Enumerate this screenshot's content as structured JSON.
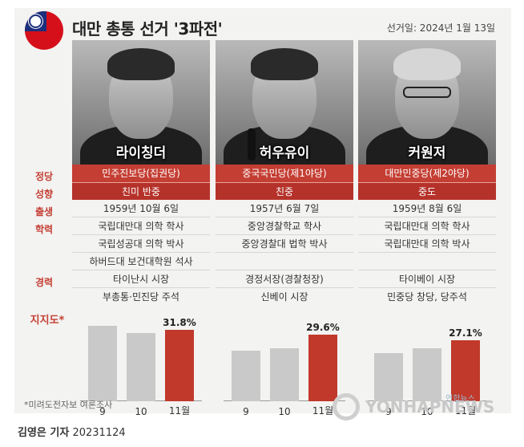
{
  "header": {
    "title": "대만 총통 선거 '3파전'",
    "date": "선거일: 2024년 1월 13일"
  },
  "row_labels": {
    "party": "정당",
    "orientation": "성향",
    "birth": "출생",
    "education": "학력",
    "career": "경력",
    "support": "지지도*"
  },
  "candidates": [
    {
      "name": "라이칭더",
      "party": "민주진보당(집권당)",
      "orientation": "친미 반중",
      "birth": "1959년 10월 6일",
      "education": [
        "국립대만대 의학 학사",
        "국립성공대 의학 박사",
        "하버드대 보건대학원 석사"
      ],
      "career": [
        "타이난시 시장",
        "부총통·민진당 주석"
      ],
      "support_pct": "31.8%"
    },
    {
      "name": "허우유이",
      "party": "중국국민당(제1야당)",
      "orientation": "친중",
      "birth": "1957년 6월 7일",
      "education": [
        "중앙경찰학교 학사",
        "중앙경찰대 법학 박사"
      ],
      "career": [
        "경정서장(경찰청장)",
        "신베이 시장"
      ],
      "support_pct": "29.6%"
    },
    {
      "name": "커원저",
      "party": "대만민중당(제2야당)",
      "orientation": "중도",
      "birth": "1959년 8월 6일",
      "education": [
        "국립대만대 의학 학사",
        "국립대만대 의학 박사"
      ],
      "career": [
        "타이베이 시장",
        "민중당 창당, 당주석"
      ],
      "support_pct": "27.1%"
    }
  ],
  "chart_data": [
    {
      "type": "bar",
      "categories": [
        "9",
        "10",
        "11월"
      ],
      "values": [
        33.5,
        30.5,
        31.8
      ],
      "ylim": [
        0,
        40
      ]
    },
    {
      "type": "bar",
      "categories": [
        "9",
        "10",
        "11월"
      ],
      "values": [
        22.5,
        23.5,
        29.6
      ],
      "ylim": [
        0,
        40
      ]
    },
    {
      "type": "bar",
      "categories": [
        "9",
        "10",
        "11월"
      ],
      "values": [
        21.5,
        23.5,
        27.1
      ],
      "ylim": [
        0,
        40
      ]
    }
  ],
  "colors": {
    "accent": "#c43e33",
    "bar_gray": "#c9c9c9",
    "bar_highlight": "#c0392b"
  },
  "footer": {
    "note": "*미려도전자보 여론조사",
    "logo_text": "YONHAPNEWS",
    "logo_small": "연합뉴스",
    "reporter": "김영은 기자",
    "code": "20231124"
  }
}
